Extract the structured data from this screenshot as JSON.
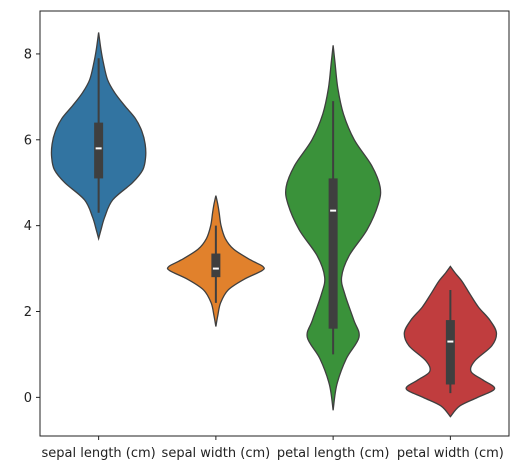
{
  "chart_data": {
    "type": "violin",
    "title": "",
    "xlabel": "",
    "ylabel": "",
    "ylim": [
      -0.9,
      9.0
    ],
    "yticks": [
      0,
      2,
      4,
      6,
      8
    ],
    "ytick_labels": [
      "0",
      "2",
      "4",
      "6",
      "8"
    ],
    "grid": false,
    "categories": [
      "sepal length (cm)",
      "sepal width (cm)",
      "petal length (cm)",
      "petal width (cm)"
    ],
    "colors": [
      "#3274a1",
      "#e1812c",
      "#3a923a",
      "#c03d3e"
    ],
    "series": [
      {
        "category": "sepal length (cm)",
        "min": 4.3,
        "q1": 5.1,
        "median": 5.8,
        "q3": 6.4,
        "max": 7.9,
        "density": [
          [
            3.7,
            0.0
          ],
          [
            3.9,
            0.05
          ],
          [
            4.2,
            0.13
          ],
          [
            4.6,
            0.3
          ],
          [
            5.0,
            0.72
          ],
          [
            5.3,
            0.94
          ],
          [
            5.6,
            1.0
          ],
          [
            5.9,
            0.99
          ],
          [
            6.2,
            0.92
          ],
          [
            6.5,
            0.78
          ],
          [
            6.8,
            0.55
          ],
          [
            7.1,
            0.34
          ],
          [
            7.4,
            0.19
          ],
          [
            7.8,
            0.1
          ],
          [
            8.1,
            0.05
          ],
          [
            8.5,
            0.0
          ]
        ]
      },
      {
        "category": "sepal width (cm)",
        "min": 2.2,
        "q1": 2.8,
        "median": 3.0,
        "q3": 3.35,
        "max": 4.0,
        "density": [
          [
            1.65,
            0.0
          ],
          [
            1.9,
            0.04
          ],
          [
            2.2,
            0.1
          ],
          [
            2.5,
            0.26
          ],
          [
            2.75,
            0.6
          ],
          [
            2.95,
            0.98
          ],
          [
            3.05,
            1.0
          ],
          [
            3.2,
            0.74
          ],
          [
            3.45,
            0.38
          ],
          [
            3.7,
            0.2
          ],
          [
            4.0,
            0.11
          ],
          [
            4.3,
            0.07
          ],
          [
            4.5,
            0.04
          ],
          [
            4.7,
            0.0
          ]
        ]
      },
      {
        "category": "petal length (cm)",
        "min": 1.0,
        "q1": 1.6,
        "median": 4.35,
        "q3": 5.1,
        "max": 6.9,
        "density": [
          [
            -0.3,
            0.0
          ],
          [
            0.3,
            0.08
          ],
          [
            0.9,
            0.28
          ],
          [
            1.4,
            0.55
          ],
          [
            1.8,
            0.44
          ],
          [
            2.4,
            0.25
          ],
          [
            2.8,
            0.18
          ],
          [
            3.3,
            0.34
          ],
          [
            3.9,
            0.72
          ],
          [
            4.5,
            0.96
          ],
          [
            4.9,
            1.0
          ],
          [
            5.4,
            0.82
          ],
          [
            6.0,
            0.45
          ],
          [
            6.6,
            0.22
          ],
          [
            7.2,
            0.1
          ],
          [
            7.8,
            0.04
          ],
          [
            8.2,
            0.0
          ]
        ]
      },
      {
        "category": "petal width (cm)",
        "min": 0.1,
        "q1": 0.3,
        "median": 1.3,
        "q3": 1.8,
        "max": 2.5,
        "density": [
          [
            -0.45,
            0.0
          ],
          [
            -0.2,
            0.2
          ],
          [
            0.0,
            0.58
          ],
          [
            0.2,
            0.94
          ],
          [
            0.4,
            0.7
          ],
          [
            0.6,
            0.44
          ],
          [
            0.85,
            0.52
          ],
          [
            1.2,
            0.88
          ],
          [
            1.5,
            0.98
          ],
          [
            1.8,
            0.84
          ],
          [
            2.1,
            0.6
          ],
          [
            2.4,
            0.42
          ],
          [
            2.7,
            0.25
          ],
          [
            2.9,
            0.1
          ],
          [
            3.05,
            0.0
          ]
        ]
      }
    ]
  }
}
